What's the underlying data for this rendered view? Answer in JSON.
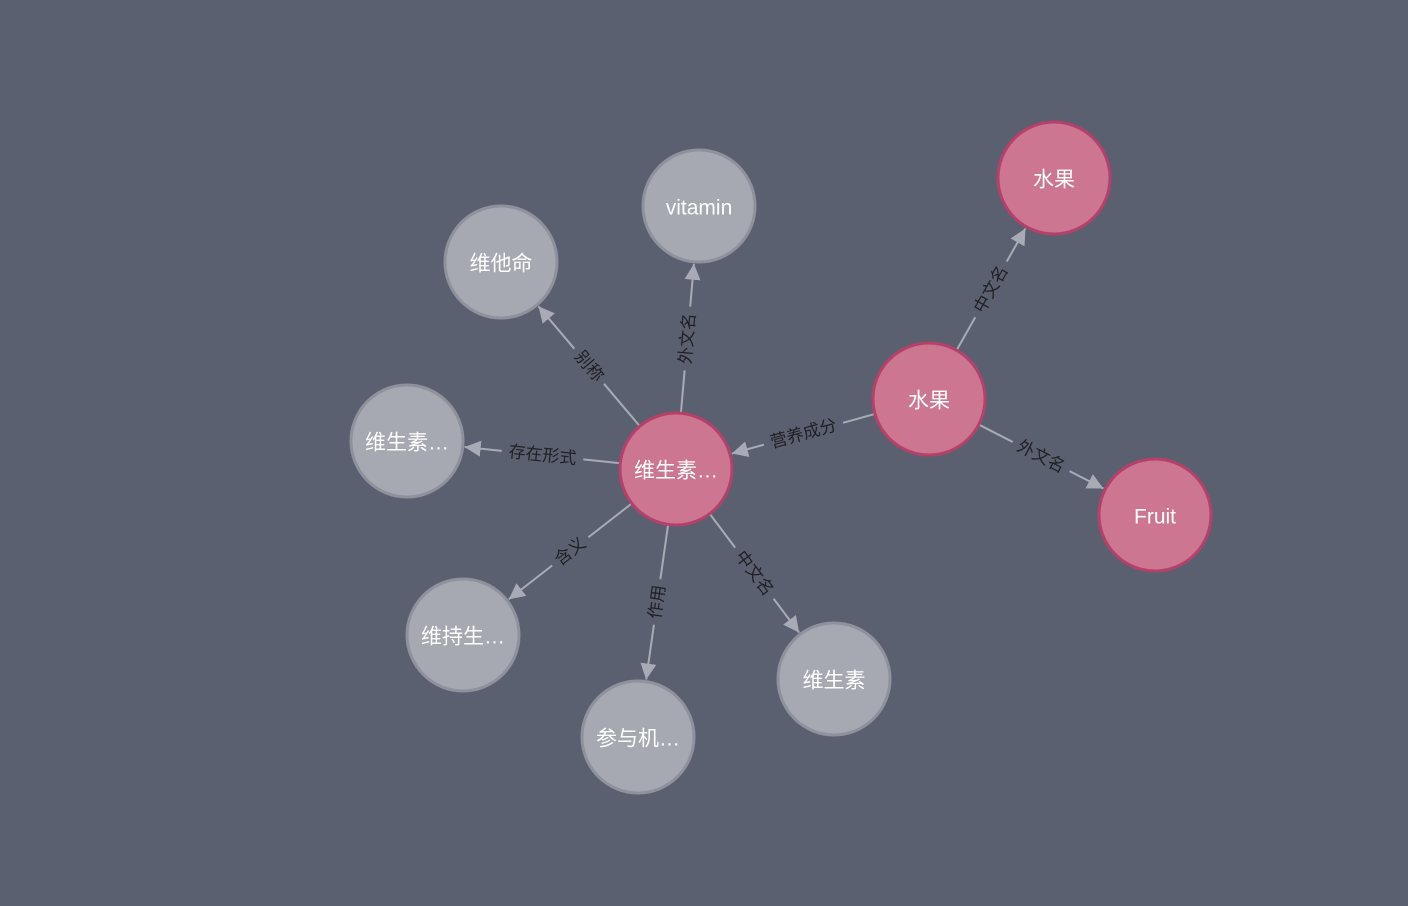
{
  "colors": {
    "background": "#5b6070",
    "entity_fill": "#cc7691",
    "entity_stroke": "#b5416a",
    "property_fill": "#a6a8b2",
    "property_stroke": "#8f929d",
    "edge": "#a8abb6",
    "edge_label": "#1f1f24",
    "node_label": "#ffffff"
  },
  "nodes": [
    {
      "id": "vitamin-main",
      "label": "维生素…",
      "kind": "entity"
    },
    {
      "id": "fruit-main",
      "label": "水果",
      "kind": "entity"
    },
    {
      "id": "fruit-cn",
      "label": "水果",
      "kind": "entity"
    },
    {
      "id": "fruit-en",
      "label": "Fruit",
      "kind": "entity"
    },
    {
      "id": "vitamin-en",
      "label": "vitamin",
      "kind": "property"
    },
    {
      "id": "vitamin-alias",
      "label": "维他命",
      "kind": "property"
    },
    {
      "id": "vitamin-form",
      "label": "维生素…",
      "kind": "property"
    },
    {
      "id": "vitamin-meaning",
      "label": "维持生…",
      "kind": "property"
    },
    {
      "id": "vitamin-role",
      "label": "参与机…",
      "kind": "property"
    },
    {
      "id": "vitamin-cn",
      "label": "维生素",
      "kind": "property"
    }
  ],
  "edges": [
    {
      "from": "vitamin-main",
      "to": "vitamin-en",
      "label": "外文名"
    },
    {
      "from": "vitamin-main",
      "to": "vitamin-alias",
      "label": "别称"
    },
    {
      "from": "vitamin-main",
      "to": "vitamin-form",
      "label": "存在形式"
    },
    {
      "from": "vitamin-main",
      "to": "vitamin-meaning",
      "label": "含义"
    },
    {
      "from": "vitamin-main",
      "to": "vitamin-role",
      "label": "作用"
    },
    {
      "from": "vitamin-main",
      "to": "vitamin-cn",
      "label": "中文名"
    },
    {
      "from": "fruit-main",
      "to": "vitamin-main",
      "label": "营养成分"
    },
    {
      "from": "fruit-main",
      "to": "fruit-cn",
      "label": "中文名"
    },
    {
      "from": "fruit-main",
      "to": "fruit-en",
      "label": "外文名"
    }
  ]
}
